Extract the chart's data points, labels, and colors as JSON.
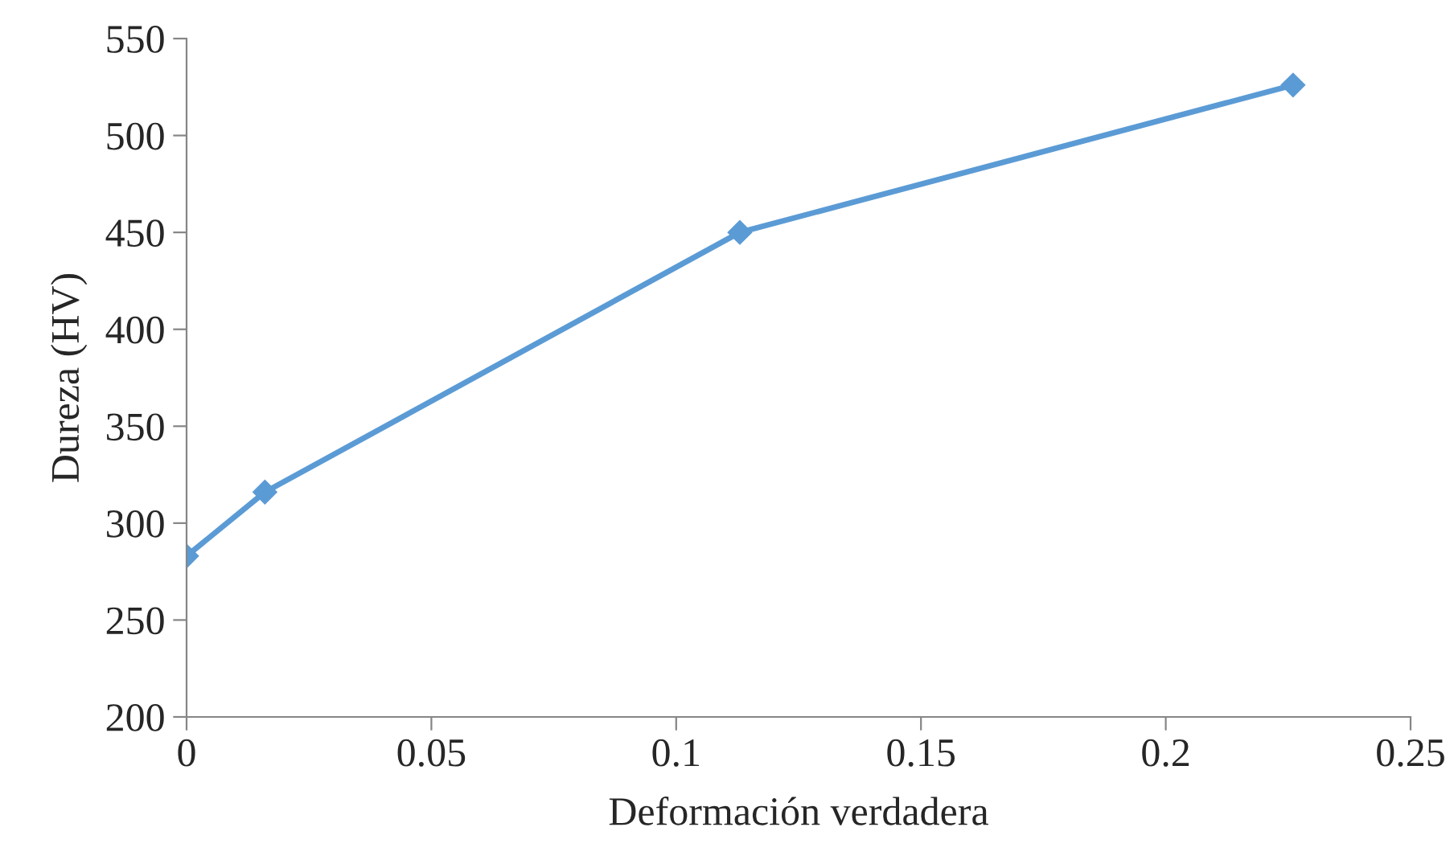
{
  "chart_data": {
    "type": "line",
    "xlabel": "Deformación verdadera",
    "ylabel": "Dureza (HV)",
    "x": [
      0,
      0.016,
      0.113,
      0.226
    ],
    "series": [
      {
        "color": "#5b9bd5",
        "values": [
          283,
          316,
          450,
          526
        ]
      }
    ],
    "xlim": [
      0,
      0.25
    ],
    "xticks": [
      0,
      0.05,
      0.1,
      0.15,
      0.2,
      0.25
    ],
    "ylim": [
      200,
      550
    ],
    "yticks": [
      200,
      250,
      300,
      350,
      400,
      450,
      500,
      550
    ],
    "marker": "diamond",
    "line_style": "solid",
    "grid": false,
    "legend": false
  }
}
